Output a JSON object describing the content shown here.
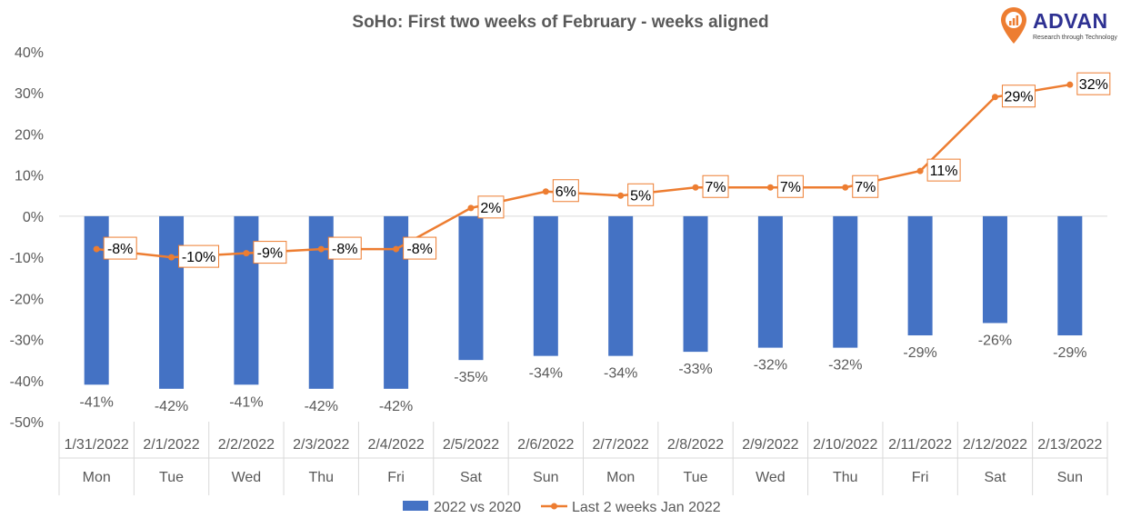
{
  "chart_data": {
    "type": "bar+line",
    "title": "SoHo: First two weeks of February - weeks aligned",
    "categories": [
      "1/31/2022",
      "2/1/2022",
      "2/2/2022",
      "2/3/2022",
      "2/4/2022",
      "2/5/2022",
      "2/6/2022",
      "2/7/2022",
      "2/8/2022",
      "2/9/2022",
      "2/10/2022",
      "2/11/2022",
      "2/12/2022",
      "2/13/2022"
    ],
    "weekdays": [
      "Mon",
      "Tue",
      "Wed",
      "Thu",
      "Fri",
      "Sat",
      "Sun",
      "Mon",
      "Tue",
      "Wed",
      "Thu",
      "Fri",
      "Sat",
      "Sun"
    ],
    "ylim": [
      -50,
      40
    ],
    "yticks": [
      -50,
      -40,
      -30,
      -20,
      -10,
      0,
      10,
      20,
      30,
      40
    ],
    "ytick_labels": [
      "-50%",
      "-40%",
      "-30%",
      "-20%",
      "-10%",
      "0%",
      "10%",
      "20%",
      "30%",
      "40%"
    ],
    "series": [
      {
        "name": "2022 vs 2020",
        "kind": "bar",
        "color": "#4472c4",
        "values": [
          -41,
          -42,
          -41,
          -42,
          -42,
          -35,
          -34,
          -34,
          -33,
          -32,
          -32,
          -29,
          -26,
          -29
        ],
        "labels": [
          "-41%",
          "-42%",
          "-41%",
          "-42%",
          "-42%",
          "-35%",
          "-34%",
          "-34%",
          "-33%",
          "-32%",
          "-32%",
          "-29%",
          "-26%",
          "-29%"
        ]
      },
      {
        "name": "Last 2 weeks Jan 2022",
        "kind": "line",
        "color": "#ed7d31",
        "values": [
          -8,
          -10,
          -9,
          -8,
          -8,
          2,
          6,
          5,
          7,
          7,
          7,
          11,
          29,
          32
        ],
        "labels": [
          "-8%",
          "-10%",
          "-9%",
          "-8%",
          "-8%",
          "2%",
          "6%",
          "5%",
          "7%",
          "7%",
          "7%",
          "11%",
          "29%",
          "32%"
        ]
      }
    ],
    "legend_position": "bottom",
    "gridlines": false
  },
  "logo": {
    "name": "ADVAN",
    "tagline": "Research through Technology",
    "color": "#2e3192",
    "accent": "#ed7d31"
  }
}
